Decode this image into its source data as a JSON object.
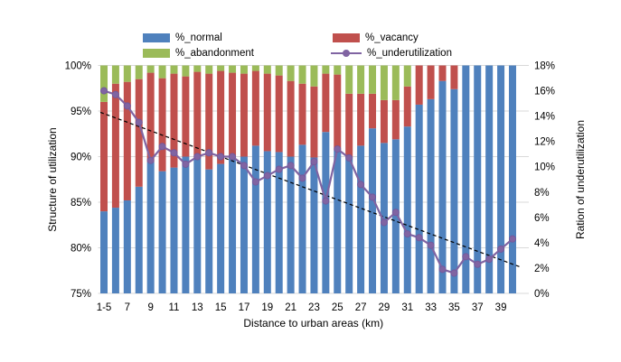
{
  "chart_data": {
    "type": "bar",
    "subtype": "stacked-100-percent-with-secondary-line",
    "title": "",
    "xlabel": "Distance to urban areas (km)",
    "left_axis": {
      "title": "Structure of utilization",
      "min": 75,
      "max": 100,
      "tick_values": [
        100,
        95,
        90,
        85,
        80,
        75
      ],
      "tick_labels": [
        "100%",
        "95%",
        "90%",
        "85%",
        "80%",
        "75%"
      ]
    },
    "right_axis": {
      "title": "Ration of underutilization",
      "min": 0,
      "max": 18,
      "tick_values": [
        18,
        16,
        14,
        12,
        10,
        8,
        6,
        4,
        2,
        0
      ],
      "tick_labels": [
        "18%",
        "16%",
        "14%",
        "12%",
        "10%",
        "8%",
        "6%",
        "4%",
        "2%",
        "0%"
      ]
    },
    "categories": [
      "1-5",
      "6",
      "7",
      "8",
      "9",
      "10",
      "11",
      "12",
      "13",
      "14",
      "15",
      "16",
      "17",
      "18",
      "19",
      "20",
      "21",
      "22",
      "23",
      "24",
      "25",
      "26",
      "27",
      "28",
      "29",
      "30",
      "31",
      "32",
      "33",
      "34",
      "35",
      "36",
      "37",
      "38",
      "39",
      "40"
    ],
    "x_axis_visible_tick_labels": [
      "1-5",
      "7",
      "9",
      "11",
      "13",
      "15",
      "17",
      "19",
      "21",
      "23",
      "25",
      "27",
      "29",
      "31",
      "33",
      "35",
      "37",
      "39"
    ],
    "series": [
      {
        "name": "%_normal",
        "kind": "bar",
        "axis": "left",
        "color": "#4F81BD",
        "values": [
          84.0,
          84.4,
          85.2,
          86.7,
          89.4,
          88.4,
          88.8,
          90.0,
          89.8,
          88.6,
          89.2,
          90.0,
          90.0,
          91.2,
          90.6,
          90.5,
          90.0,
          91.3,
          89.9,
          92.7,
          90.7,
          90.0,
          91.2,
          93.1,
          91.5,
          91.9,
          93.3,
          95.7,
          96.3,
          98.3,
          97.4,
          100,
          100,
          100,
          100,
          100
        ]
      },
      {
        "name": "%_vacancy",
        "kind": "bar",
        "axis": "left",
        "color": "#C0504D",
        "values": [
          12.0,
          13.6,
          13.0,
          11.8,
          9.8,
          10.2,
          10.3,
          8.8,
          9.5,
          10.5,
          10.2,
          9.2,
          9.1,
          8.2,
          8.5,
          8.4,
          8.3,
          6.7,
          7.8,
          6.4,
          8.3,
          6.9,
          5.7,
          3.8,
          4.7,
          4.3,
          4.4,
          4.3,
          3.7,
          1.7,
          2.6,
          0,
          0,
          0,
          0,
          0
        ]
      },
      {
        "name": "%_abandonment",
        "kind": "bar",
        "axis": "left",
        "color": "#9BBB59",
        "values": [
          4.0,
          2.0,
          1.8,
          1.5,
          0.8,
          1.4,
          0.9,
          1.2,
          0.7,
          0.9,
          0.6,
          0.8,
          0.9,
          0.6,
          0.9,
          1.1,
          1.7,
          2.0,
          2.3,
          0.9,
          1.0,
          3.1,
          3.1,
          3.1,
          3.8,
          3.8,
          2.3,
          0,
          0,
          0,
          0,
          0,
          0,
          0,
          0,
          0
        ]
      },
      {
        "name": "%_underutilization",
        "kind": "line",
        "axis": "right",
        "color": "#8064A2",
        "marker": "circle",
        "values": [
          16.0,
          15.7,
          14.8,
          13.5,
          10.5,
          11.6,
          11.1,
          10.2,
          10.8,
          11.1,
          10.8,
          10.8,
          10.1,
          8.8,
          9.3,
          9.8,
          10.1,
          9.1,
          10.4,
          7.3,
          11.4,
          10.7,
          8.6,
          7.6,
          5.6,
          6.4,
          4.7,
          4.4,
          3.8,
          1.9,
          1.6,
          2.9,
          2.3,
          2.7,
          3.5,
          4.3
        ]
      }
    ],
    "trendline": {
      "kind": "linear",
      "style": "dashed",
      "axis": "right",
      "color": "#000000",
      "start_value": 14.3,
      "end_value": 2.1
    },
    "legend": {
      "position": "top",
      "rows": [
        [
          "%_normal",
          "%_vacancy"
        ],
        [
          "%_abandonment",
          "%_underutilization"
        ]
      ]
    },
    "grid": {
      "horizontal": true,
      "vertical": false,
      "color": "#D9D9D9"
    }
  }
}
